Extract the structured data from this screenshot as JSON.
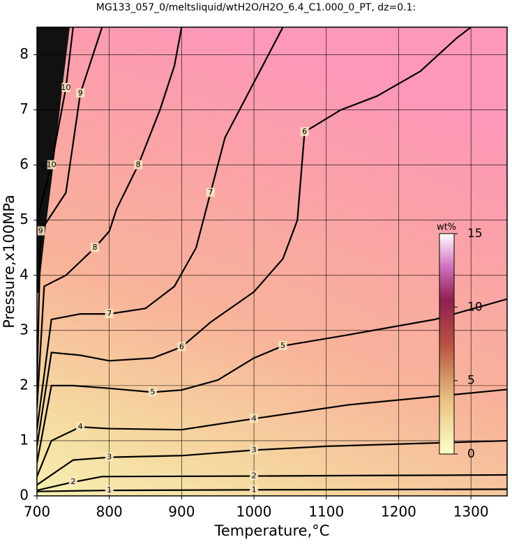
{
  "chart_data": {
    "type": "contour",
    "title": "MG133_057_0/meltsliquid/wtH2O/H2O_6.4_C1.000_0_PT, dz=0.1:",
    "xlabel": "Temperature,°C",
    "ylabel": "Pressure,x100MPa",
    "xlim": [
      700,
      1350
    ],
    "ylim": [
      0,
      8.5
    ],
    "xticks": [
      700,
      800,
      900,
      1000,
      1100,
      1200,
      1300
    ],
    "yticks": [
      0,
      1,
      2,
      3,
      4,
      5,
      6,
      7,
      8
    ],
    "grid": true,
    "contours": [
      {
        "level": 1,
        "x": [
          700,
          800,
          1000,
          1350
        ],
        "y": [
          0.08,
          0.1,
          0.11,
          0.12
        ]
      },
      {
        "level": 2,
        "x": [
          700,
          750,
          790,
          1000,
          1350
        ],
        "y": [
          0.1,
          0.25,
          0.35,
          0.36,
          0.38
        ]
      },
      {
        "level": 3,
        "x": [
          700,
          750,
          800,
          900,
          1000,
          1100,
          1350
        ],
        "y": [
          0.2,
          0.65,
          0.7,
          0.73,
          0.83,
          0.9,
          1.0
        ]
      },
      {
        "level": 4,
        "x": [
          700,
          720,
          760,
          800,
          900,
          1000,
          1130,
          1350
        ],
        "y": [
          0.35,
          1.0,
          1.25,
          1.22,
          1.2,
          1.4,
          1.65,
          1.93
        ]
      },
      {
        "level": 5,
        "x": [
          700,
          720,
          750,
          800,
          860,
          900,
          950,
          1000,
          1040,
          1130,
          1250,
          1350
        ],
        "y": [
          0.6,
          2.0,
          2.0,
          1.95,
          1.88,
          1.92,
          2.1,
          2.5,
          2.72,
          2.92,
          3.2,
          3.57
        ]
      },
      {
        "level": 6,
        "x": [
          700,
          720,
          760,
          800,
          860,
          900,
          940,
          1000,
          1040,
          1060,
          1070,
          1120,
          1170,
          1230,
          1280,
          1300
        ],
        "y": [
          0.9,
          2.6,
          2.55,
          2.45,
          2.5,
          2.7,
          3.15,
          3.7,
          4.3,
          5.0,
          6.6,
          7.0,
          7.25,
          7.7,
          8.3,
          8.5
        ]
      },
      {
        "level": 7,
        "x": [
          700,
          720,
          760,
          800,
          850,
          890,
          920,
          940,
          960,
          1000,
          1040
        ],
        "y": [
          1.2,
          3.2,
          3.3,
          3.3,
          3.4,
          3.8,
          4.5,
          5.5,
          6.5,
          7.5,
          8.5
        ]
      },
      {
        "level": 8,
        "x": [
          700,
          710,
          740,
          780,
          800,
          810,
          840,
          870,
          890,
          900
        ],
        "y": [
          1.6,
          3.8,
          4.0,
          4.5,
          4.8,
          5.2,
          6.0,
          7.0,
          7.8,
          8.5
        ]
      },
      {
        "level": 9,
        "x": [
          700,
          705,
          740,
          760,
          790
        ],
        "y": [
          2.0,
          4.8,
          5.5,
          7.3,
          8.5
        ]
      },
      {
        "level": 10,
        "x": [
          700,
          720,
          740,
          750
        ],
        "y": [
          5.0,
          6.0,
          7.4,
          8.5
        ]
      }
    ],
    "colorbar": {
      "label": "wt%",
      "lim": [
        0,
        15
      ],
      "ticks": [
        0,
        5,
        10,
        15
      ]
    }
  }
}
